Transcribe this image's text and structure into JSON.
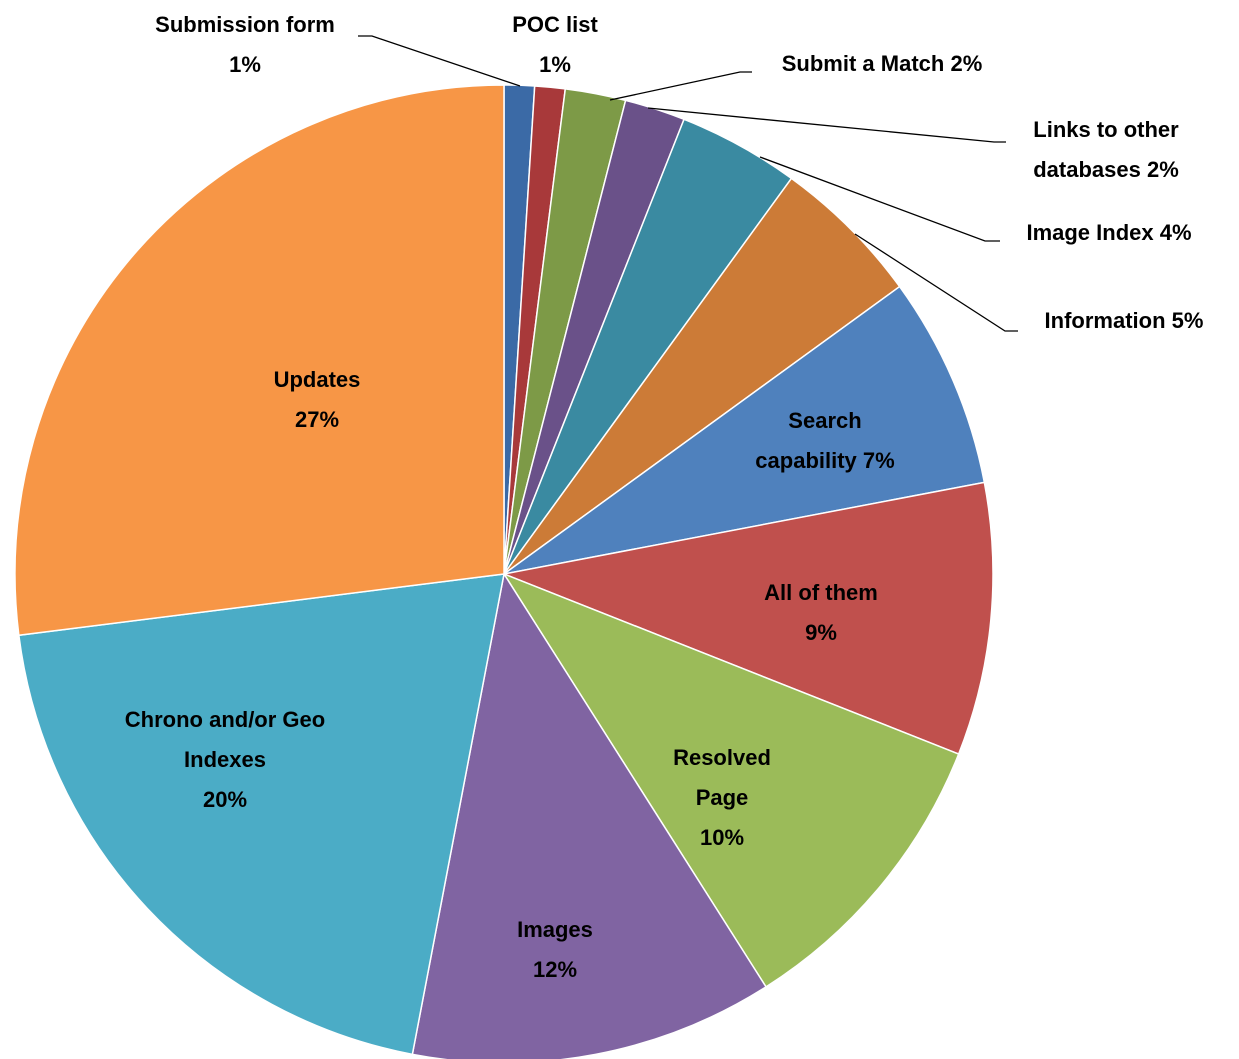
{
  "chart_data": {
    "type": "pie",
    "categories": [
      "Submission form",
      "POC list",
      "Submit a Match",
      "Links to other databases",
      "Image Index",
      "Information",
      "Search capability",
      "All of them",
      "Resolved Page",
      "Images",
      "Chrono and/or Geo Indexes",
      "Updates"
    ],
    "values": [
      1,
      1,
      2,
      2,
      4,
      5,
      7,
      9,
      10,
      12,
      20,
      27
    ],
    "value_labels": [
      "1%",
      "1%",
      "2%",
      "2%",
      "4%",
      "5%",
      "7%",
      "9%",
      "10%",
      "12%",
      "20%",
      "27%"
    ],
    "colors": [
      "#3b6aa6",
      "#a8393a",
      "#7d9a47",
      "#6a5189",
      "#3a8aa1",
      "#cc7b37",
      "#4f81bd",
      "#c0504d",
      "#9bbb59",
      "#8064a2",
      "#4bacc6",
      "#f79646"
    ]
  }
}
